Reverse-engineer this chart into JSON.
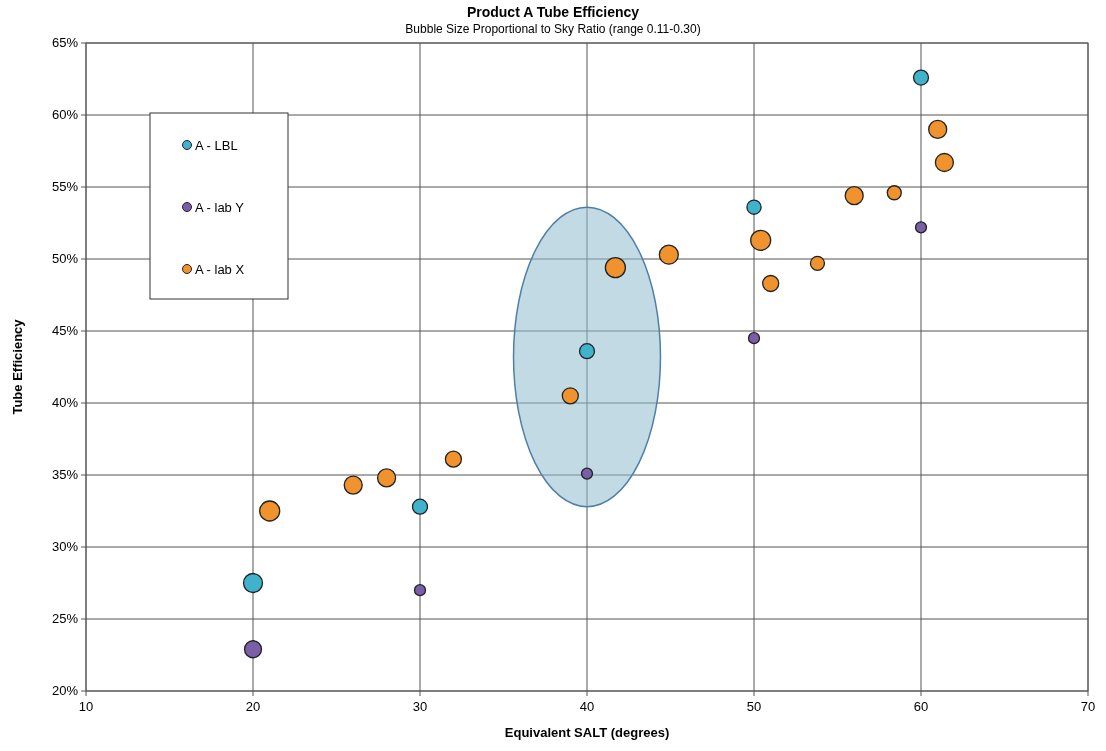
{
  "chart_data": {
    "type": "bubble",
    "title": "Product A Tube Efficiency",
    "subtitle": "Bubble Size Proportional to Sky Ratio (range 0.11-0.30)",
    "xlabel": "Equivalent SALT (degrees)",
    "ylabel": "Tube Efficiency",
    "xlim": [
      10,
      70
    ],
    "xticks": [
      10,
      20,
      30,
      40,
      50,
      60,
      70
    ],
    "ylim": [
      20,
      65
    ],
    "yticks": [
      {
        "value": 20,
        "label": "20%"
      },
      {
        "value": 25,
        "label": "25%"
      },
      {
        "value": 30,
        "label": "30%"
      },
      {
        "value": 35,
        "label": "35%"
      },
      {
        "value": 40,
        "label": "40%"
      },
      {
        "value": 45,
        "label": "45%"
      },
      {
        "value": 50,
        "label": "50%"
      },
      {
        "value": 55,
        "label": "55%"
      },
      {
        "value": 60,
        "label": "60%"
      },
      {
        "value": 65,
        "label": "65%"
      }
    ],
    "grid": true,
    "legend": "top left",
    "relative": false,
    "series": [
      {
        "name": "A - LBL",
        "color": "#3fb3cc",
        "x": [
          20,
          30,
          40,
          50,
          60
        ],
        "values": [
          27.5,
          32.8,
          43.6,
          53.6,
          62.6
        ],
        "sizes": [
          0.9,
          0.56,
          0.56,
          0.5,
          0.56
        ]
      },
      {
        "name": "A - lab Y",
        "color": "#7b5ea8",
        "x": [
          20,
          30,
          40,
          50,
          60
        ],
        "values": [
          22.9,
          27.0,
          35.1,
          44.5,
          52.2
        ],
        "sizes": [
          0.72,
          0.3,
          0.3,
          0.3,
          0.3
        ]
      },
      {
        "name": "A - lab X",
        "color": "#f0932e",
        "x": [
          21,
          26,
          28,
          32,
          39,
          41.7,
          44.9,
          50.4,
          51,
          53.8,
          56,
          58.4,
          61,
          61.4
        ],
        "values": [
          32.5,
          34.3,
          34.8,
          36.1,
          40.5,
          49.4,
          50.3,
          51.3,
          48.3,
          49.7,
          54.4,
          54.6,
          59.0,
          56.7
        ],
        "sizes": [
          1,
          0.81,
          0.81,
          0.64,
          0.64,
          1,
          0.9,
          1,
          0.64,
          0.49,
          0.81,
          0.49,
          0.81,
          0.81
        ]
      }
    ]
  }
}
